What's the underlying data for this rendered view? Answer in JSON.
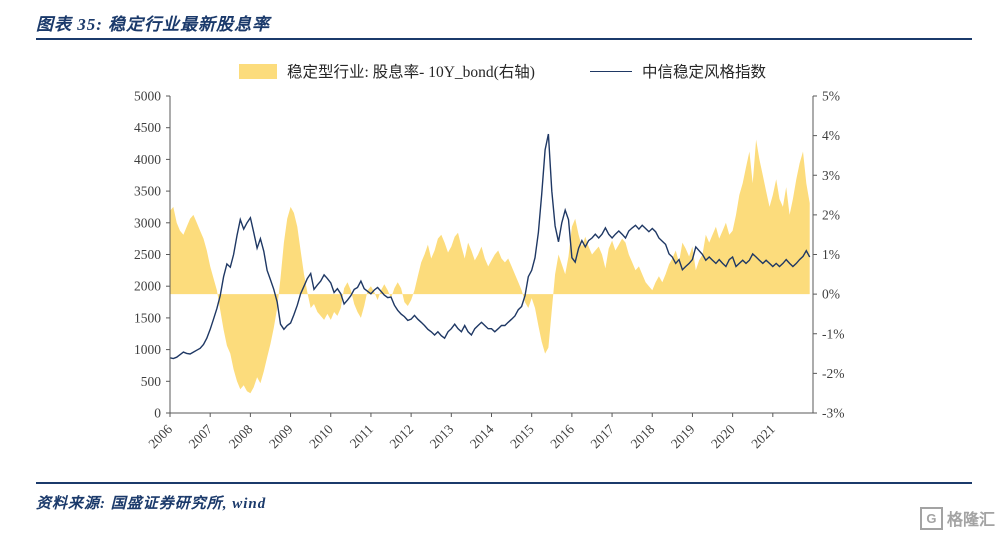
{
  "page": {
    "title": "图表 35:  稳定行业最新股息率",
    "source": "资料来源: 国盛证券研究所, wind",
    "logo_letter": "G",
    "logo_text": "格隆汇",
    "accent_color": "#1b3a6b"
  },
  "chart_data": {
    "type": "area",
    "title": "稳定行业最新股息率",
    "legend": [
      {
        "label": "稳定型行业: 股息率- 10Y_bond(右轴)",
        "type": "area",
        "color": "#fcdc7c",
        "axis": "right"
      },
      {
        "label": "中信稳定风格指数",
        "type": "line",
        "color": "#1f3864",
        "axis": "left"
      }
    ],
    "x_axis": {
      "start_year": 2006,
      "end_year": 2022,
      "points_per_year": 12,
      "tick_labels": [
        "2006",
        "2007",
        "2008",
        "2009",
        "2010",
        "2011",
        "2012",
        "2013",
        "2014",
        "2015",
        "2016",
        "2017",
        "2018",
        "2019",
        "2020",
        "2021"
      ]
    },
    "left_axis": {
      "min": 0,
      "max": 5000,
      "step": 500,
      "tick_labels": [
        "5000",
        "4500",
        "4000",
        "3500",
        "3000",
        "2500",
        "2000",
        "1500",
        "1000",
        "500",
        "0"
      ]
    },
    "right_axis": {
      "min": -3,
      "max": 5,
      "step": 1,
      "tick_labels": [
        "5%",
        "4%",
        "3%",
        "2%",
        "1%",
        "0%",
        "-1%",
        "-2%",
        "-3%"
      ]
    },
    "series": [
      {
        "name": "中信稳定风格指数",
        "axis": "left",
        "values": [
          870,
          860,
          880,
          920,
          960,
          940,
          930,
          960,
          990,
          1020,
          1080,
          1180,
          1320,
          1480,
          1650,
          1850,
          2150,
          2350,
          2300,
          2500,
          2800,
          3050,
          2900,
          3000,
          3080,
          2850,
          2600,
          2750,
          2550,
          2250,
          2100,
          1950,
          1750,
          1400,
          1320,
          1380,
          1420,
          1550,
          1700,
          1880,
          2000,
          2120,
          2200,
          1950,
          2020,
          2080,
          2180,
          2120,
          2050,
          1900,
          1960,
          1880,
          1720,
          1780,
          1850,
          1950,
          1980,
          2080,
          1960,
          1920,
          1880,
          1940,
          1980,
          1920,
          1860,
          1820,
          1830,
          1700,
          1620,
          1560,
          1520,
          1460,
          1480,
          1540,
          1480,
          1430,
          1380,
          1320,
          1280,
          1230,
          1280,
          1220,
          1180,
          1280,
          1330,
          1400,
          1330,
          1280,
          1380,
          1280,
          1230,
          1330,
          1380,
          1430,
          1380,
          1330,
          1330,
          1280,
          1330,
          1380,
          1380,
          1430,
          1480,
          1530,
          1630,
          1680,
          1850,
          2150,
          2250,
          2450,
          2850,
          3450,
          4150,
          4400,
          3500,
          2950,
          2700,
          3000,
          3200,
          3050,
          2450,
          2380,
          2600,
          2720,
          2620,
          2720,
          2760,
          2820,
          2760,
          2820,
          2920,
          2820,
          2760,
          2820,
          2870,
          2820,
          2760,
          2870,
          2920,
          2960,
          2900,
          2960,
          2910,
          2860,
          2910,
          2860,
          2760,
          2710,
          2660,
          2510,
          2460,
          2360,
          2420,
          2260,
          2310,
          2360,
          2420,
          2620,
          2560,
          2500,
          2410,
          2460,
          2410,
          2360,
          2420,
          2360,
          2310,
          2420,
          2460,
          2310,
          2360,
          2410,
          2360,
          2410,
          2510,
          2460,
          2410,
          2360,
          2410,
          2360,
          2310,
          2360,
          2310,
          2360,
          2420,
          2360,
          2310,
          2360,
          2420,
          2470,
          2560,
          2460
        ]
      },
      {
        "name": "稳定型行业: 股息率- 10Y_bond(右轴)",
        "axis": "right",
        "baseline": 0,
        "values": [
          2.1,
          2.2,
          1.8,
          1.6,
          1.5,
          1.7,
          1.9,
          2.0,
          1.8,
          1.6,
          1.4,
          1.1,
          0.7,
          0.4,
          0.1,
          -0.4,
          -0.9,
          -1.3,
          -1.5,
          -1.9,
          -2.2,
          -2.4,
          -2.3,
          -2.45,
          -2.5,
          -2.35,
          -2.1,
          -2.25,
          -1.95,
          -1.6,
          -1.25,
          -0.85,
          -0.35,
          0.4,
          1.3,
          1.9,
          2.2,
          2.05,
          1.7,
          1.1,
          0.5,
          0.05,
          -0.35,
          -0.25,
          -0.45,
          -0.55,
          -0.65,
          -0.5,
          -0.65,
          -0.45,
          -0.55,
          -0.35,
          0.15,
          0.3,
          0.1,
          -0.25,
          -0.45,
          -0.6,
          -0.3,
          0.1,
          0.2,
          0.05,
          -0.15,
          0.1,
          0.25,
          0.1,
          -0.1,
          0.15,
          0.3,
          0.15,
          -0.2,
          -0.3,
          -0.15,
          0.1,
          0.45,
          0.8,
          1.0,
          1.25,
          0.9,
          1.1,
          1.4,
          1.5,
          1.3,
          1.05,
          1.2,
          1.45,
          1.55,
          1.2,
          0.9,
          1.3,
          1.1,
          0.85,
          1.0,
          1.2,
          0.9,
          0.7,
          0.85,
          1.0,
          1.1,
          0.9,
          0.8,
          0.9,
          0.7,
          0.5,
          0.3,
          0.1,
          -0.2,
          -0.35,
          -0.1,
          -0.35,
          -0.8,
          -1.2,
          -1.5,
          -1.35,
          -0.4,
          0.5,
          1.0,
          0.75,
          0.5,
          0.95,
          1.7,
          1.9,
          1.5,
          1.2,
          1.45,
          1.2,
          1.0,
          1.1,
          1.2,
          1.0,
          0.65,
          1.15,
          1.35,
          1.1,
          1.25,
          1.4,
          1.3,
          1.0,
          0.8,
          0.6,
          0.7,
          0.5,
          0.3,
          0.2,
          0.1,
          0.3,
          0.45,
          0.3,
          0.5,
          0.75,
          0.9,
          1.1,
          0.8,
          1.3,
          1.15,
          0.95,
          1.2,
          0.6,
          0.85,
          1.0,
          1.5,
          1.3,
          1.5,
          1.7,
          1.4,
          1.6,
          1.8,
          1.5,
          1.6,
          2.0,
          2.5,
          2.8,
          3.2,
          3.6,
          2.8,
          3.9,
          3.4,
          3.0,
          2.6,
          2.2,
          2.5,
          2.9,
          2.4,
          2.2,
          2.7,
          2.0,
          2.4,
          2.9,
          3.3,
          3.6,
          2.8,
          2.3
        ]
      }
    ]
  }
}
